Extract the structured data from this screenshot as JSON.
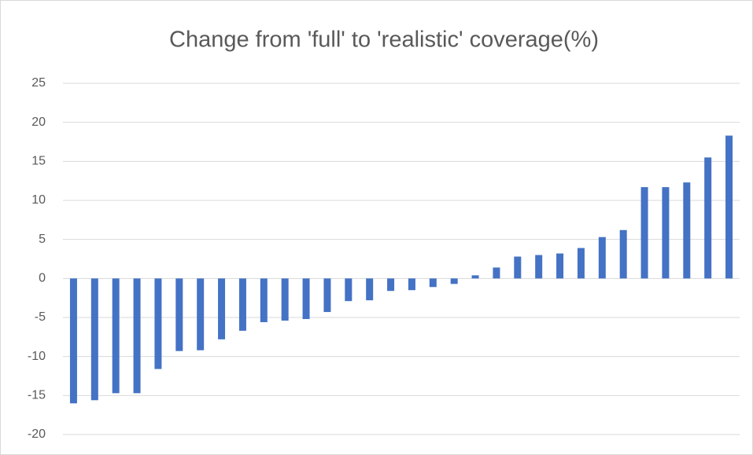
{
  "chart_data": {
    "type": "bar",
    "title": "Change from 'full' to 'realistic' coverage(%)",
    "categories": [
      null,
      null,
      null,
      null,
      null,
      null,
      null,
      null,
      null,
      null,
      null,
      null,
      null,
      null,
      null,
      null,
      null,
      null,
      null,
      null,
      null,
      null,
      null,
      null,
      null,
      null,
      null,
      null,
      null,
      null,
      null,
      null
    ],
    "values": [
      -16.0,
      -15.6,
      -14.7,
      -14.7,
      -11.6,
      -9.3,
      -9.2,
      -7.8,
      -6.7,
      -5.6,
      -5.4,
      -5.2,
      -4.3,
      -2.9,
      -2.8,
      -1.6,
      -1.5,
      -1.1,
      -0.7,
      0.4,
      1.4,
      2.8,
      3.0,
      3.2,
      3.9,
      5.3,
      6.2,
      11.7,
      11.7,
      12.3,
      15.5,
      18.3
    ],
    "color": "#4472c4",
    "ylim": [
      -20,
      25
    ],
    "yticks": [
      -20,
      -15,
      -10,
      -5,
      0,
      5,
      10,
      15,
      20,
      25
    ],
    "grid": true
  }
}
